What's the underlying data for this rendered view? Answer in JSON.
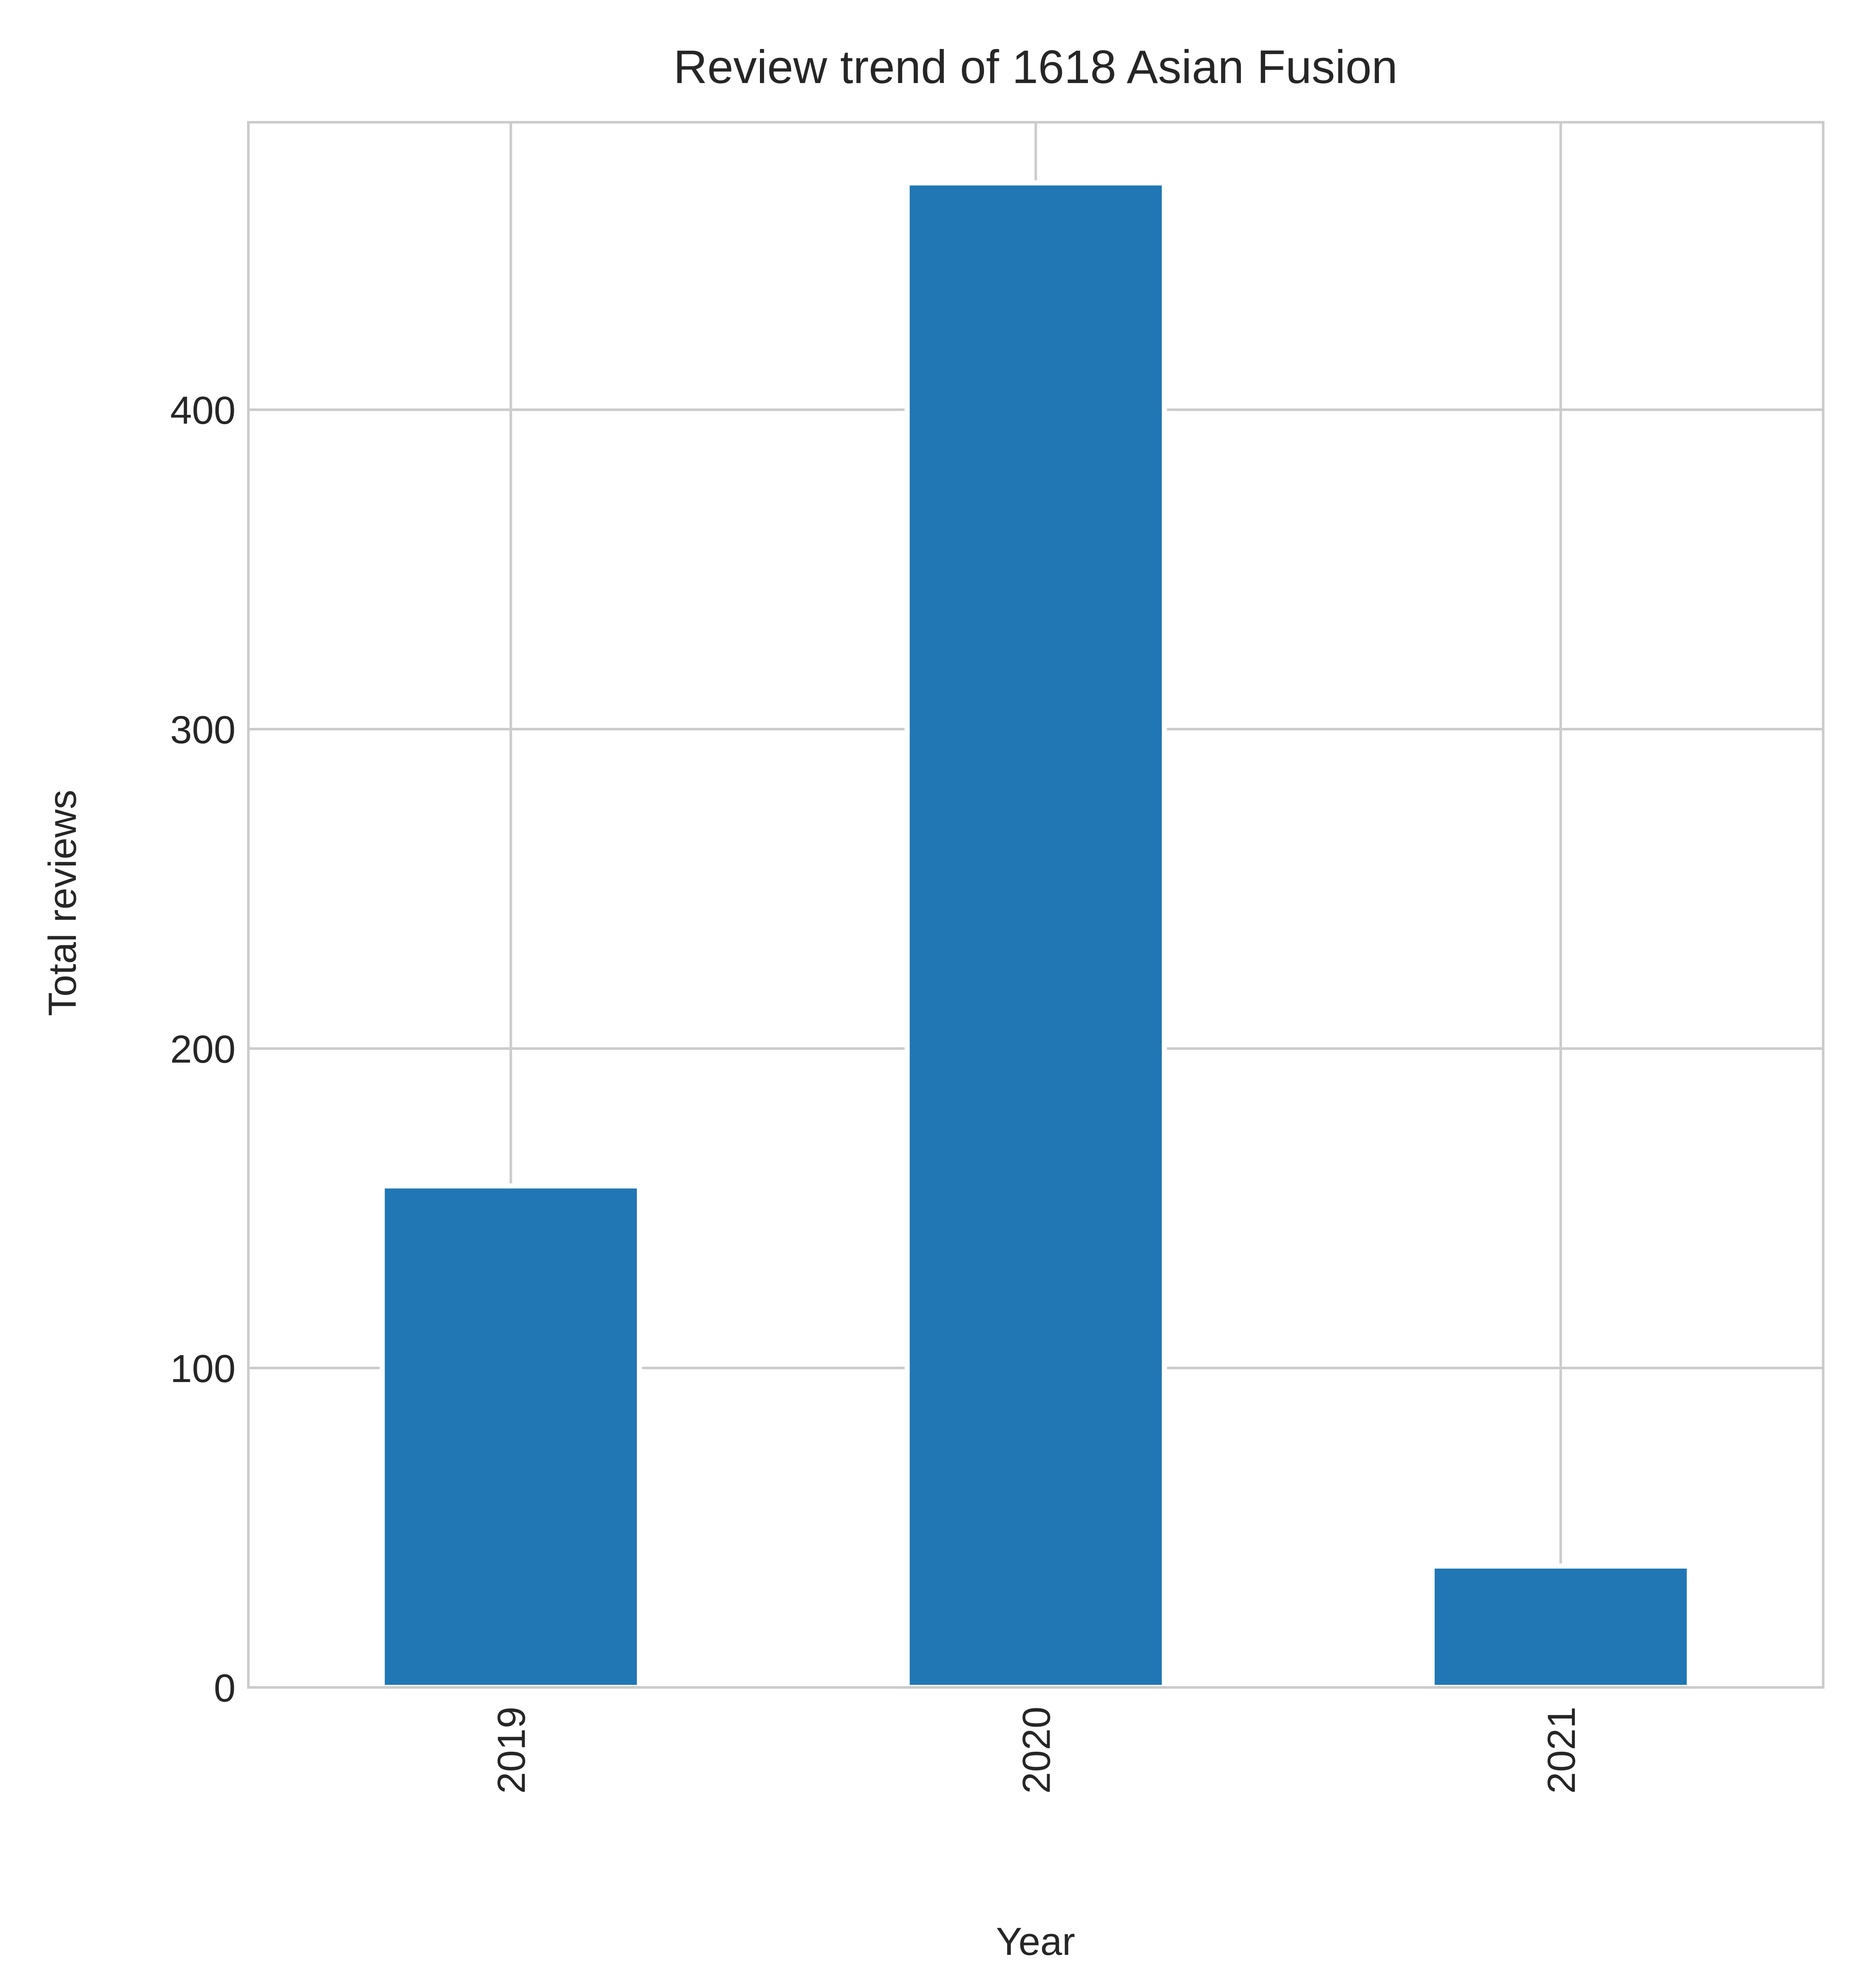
{
  "chart_data": {
    "type": "bar",
    "title": "Review trend of 1618 Asian Fusion",
    "xlabel": "Year",
    "ylabel": "Total reviews",
    "categories": [
      "2019",
      "2020",
      "2021"
    ],
    "values": [
      157,
      471,
      38
    ],
    "ylim": [
      0,
      490
    ],
    "yticks": [
      0,
      100,
      200,
      300,
      400
    ],
    "ytick_labels": [
      "0",
      "100",
      "200",
      "300",
      "400"
    ],
    "grid": true,
    "bar_color": "#2077b4",
    "grid_color": "#cccccc",
    "text_color": "#262626"
  }
}
